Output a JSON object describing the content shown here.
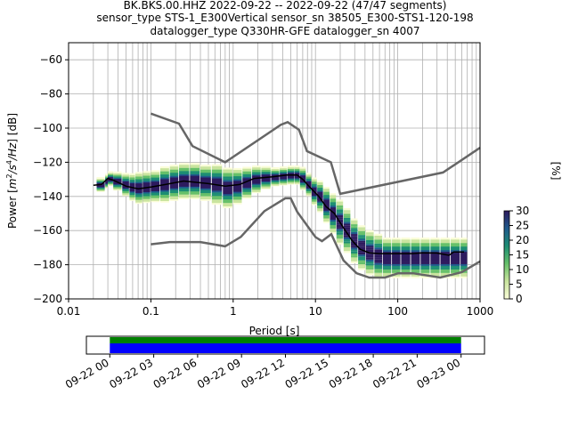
{
  "title_lines": [
    "BK.BKS.00.HHZ   2022-09-22 -- 2022-09-22  (47/47 segments)",
    "sensor_type STS-1_E300Vertical sensor_sn 38505_E300-STS1-120-198",
    "datalogger_type Q330HR-GFE datalogger_sn 4007"
  ],
  "chart_data": [
    {
      "type": "heatmap",
      "xlabel": "Period [s]",
      "ylabel_parts": {
        "a": "Power [",
        "b": "m",
        "c": "2",
        "d": "/s",
        "e": "4",
        "f": "/Hz",
        "g": "] [dB]"
      },
      "xscale": "log",
      "xlim": [
        0.01,
        1000
      ],
      "ylim": [
        -200,
        -50
      ],
      "xticks": [
        {
          "v": 0.01,
          "label": "0.01"
        },
        {
          "v": 0.1,
          "label": "0.1"
        },
        {
          "v": 1,
          "label": "1"
        },
        {
          "v": 10,
          "label": "10"
        },
        {
          "v": 100,
          "label": "100"
        },
        {
          "v": 1000,
          "label": "1000"
        }
      ],
      "yticks": [
        {
          "v": -60,
          "label": "−60"
        },
        {
          "v": -80,
          "label": "−80"
        },
        {
          "v": -100,
          "label": "−100"
        },
        {
          "v": -120,
          "label": "−120"
        },
        {
          "v": -140,
          "label": "−140"
        },
        {
          "v": -160,
          "label": "−160"
        },
        {
          "v": -180,
          "label": "−180"
        },
        {
          "v": -200,
          "label": "−200"
        }
      ],
      "grid": true,
      "nhnm": [
        [
          0.1,
          -168
        ],
        [
          0.17,
          -166.7
        ],
        [
          0.4,
          -166.7
        ],
        [
          0.8,
          -169.2
        ],
        [
          1.24,
          -163.7
        ],
        [
          2.4,
          -148.6
        ],
        [
          4.3,
          -141.1
        ],
        [
          5,
          -141.1
        ],
        [
          6,
          -149
        ],
        [
          10,
          -163.8
        ],
        [
          12,
          -166.2
        ],
        [
          15.6,
          -162.1
        ],
        [
          21.9,
          -177.5
        ],
        [
          31.6,
          -185
        ],
        [
          45,
          -187.5
        ],
        [
          70,
          -187.5
        ],
        [
          101,
          -185
        ],
        [
          154,
          -185
        ],
        [
          328,
          -187.5
        ],
        [
          600,
          -184.4
        ],
        [
          1000,
          -178
        ]
      ],
      "nlnm": [
        [
          0.1,
          -91.5
        ],
        [
          0.22,
          -97.4
        ],
        [
          0.32,
          -110.5
        ],
        [
          0.8,
          -120
        ],
        [
          3.8,
          -98
        ],
        [
          4.6,
          -96.5
        ],
        [
          6.3,
          -101
        ],
        [
          7.9,
          -113.5
        ],
        [
          15.4,
          -120
        ],
        [
          20,
          -138.5
        ],
        [
          354.8,
          -126
        ],
        [
          1000,
          -111.5
        ]
      ],
      "median": [
        [
          0.02,
          -133.5
        ],
        [
          0.025,
          -133
        ],
        [
          0.03,
          -129.5
        ],
        [
          0.035,
          -130.5
        ],
        [
          0.05,
          -134
        ],
        [
          0.07,
          -135.5
        ],
        [
          0.1,
          -134.5
        ],
        [
          0.15,
          -133
        ],
        [
          0.25,
          -131
        ],
        [
          0.5,
          -132.5
        ],
        [
          0.8,
          -134
        ],
        [
          1.2,
          -133
        ],
        [
          1.8,
          -129.5
        ],
        [
          3,
          -128.5
        ],
        [
          4.5,
          -127.5
        ],
        [
          6,
          -127.5
        ],
        [
          7,
          -130
        ],
        [
          8.5,
          -134.5
        ],
        [
          11,
          -140
        ],
        [
          13.5,
          -146
        ],
        [
          17,
          -150
        ],
        [
          22,
          -158.5
        ],
        [
          28,
          -166
        ],
        [
          35,
          -171
        ],
        [
          45,
          -173
        ],
        [
          60,
          -173.5
        ],
        [
          100,
          -173.5
        ],
        [
          150,
          -173.5
        ],
        [
          200,
          -173
        ],
        [
          300,
          -173.2
        ],
        [
          420,
          -174.5
        ],
        [
          480,
          -172.5
        ],
        [
          640,
          -172.5
        ]
      ],
      "density_grid": [
        {
          "x": 0.022,
          "c": -133,
          "s": 3
        },
        {
          "x": 0.028,
          "c": -131,
          "s": 3
        },
        {
          "x": 0.03,
          "c": -129.5,
          "s": 3
        },
        {
          "x": 0.035,
          "c": -131,
          "s": 4
        },
        {
          "x": 0.045,
          "c": -133,
          "s": 5
        },
        {
          "x": 0.055,
          "c": -134.5,
          "s": 6
        },
        {
          "x": 0.065,
          "c": -135,
          "s": 7
        },
        {
          "x": 0.08,
          "c": -134.5,
          "s": 7
        },
        {
          "x": 0.1,
          "c": -134,
          "s": 7
        },
        {
          "x": 0.13,
          "c": -133,
          "s": 8
        },
        {
          "x": 0.17,
          "c": -132,
          "s": 8
        },
        {
          "x": 0.22,
          "c": -131,
          "s": 8
        },
        {
          "x": 0.3,
          "c": -131,
          "s": 8
        },
        {
          "x": 0.4,
          "c": -132,
          "s": 8
        },
        {
          "x": 0.55,
          "c": -133,
          "s": 9
        },
        {
          "x": 0.75,
          "c": -135,
          "s": 9
        },
        {
          "x": 1.0,
          "c": -134,
          "s": 8
        },
        {
          "x": 1.3,
          "c": -132,
          "s": 7
        },
        {
          "x": 1.7,
          "c": -130,
          "s": 6
        },
        {
          "x": 2.2,
          "c": -129,
          "s": 5
        },
        {
          "x": 2.9,
          "c": -128.5,
          "s": 4
        },
        {
          "x": 3.7,
          "c": -128,
          "s": 4
        },
        {
          "x": 4.6,
          "c": -127.5,
          "s": 4
        },
        {
          "x": 5.6,
          "c": -127.5,
          "s": 4
        },
        {
          "x": 6.5,
          "c": -129.5,
          "s": 5
        },
        {
          "x": 7.7,
          "c": -133,
          "s": 5
        },
        {
          "x": 9,
          "c": -137,
          "s": 6
        },
        {
          "x": 10.5,
          "c": -140,
          "s": 7
        },
        {
          "x": 12.5,
          "c": -145,
          "s": 8
        },
        {
          "x": 15,
          "c": -150,
          "s": 9
        },
        {
          "x": 18,
          "c": -155,
          "s": 10
        },
        {
          "x": 22,
          "c": -160,
          "s": 10
        },
        {
          "x": 27,
          "c": -166,
          "s": 10
        },
        {
          "x": 33,
          "c": -170,
          "s": 10
        },
        {
          "x": 41,
          "c": -173,
          "s": 10
        },
        {
          "x": 52,
          "c": -175,
          "s": 10
        },
        {
          "x": 66,
          "c": -176,
          "s": 9
        },
        {
          "x": 85,
          "c": -176,
          "s": 9
        },
        {
          "x": 110,
          "c": -176,
          "s": 9
        },
        {
          "x": 145,
          "c": -176,
          "s": 9
        },
        {
          "x": 190,
          "c": -176,
          "s": 9
        },
        {
          "x": 250,
          "c": -176,
          "s": 9
        },
        {
          "x": 330,
          "c": -176,
          "s": 9
        },
        {
          "x": 440,
          "c": -176,
          "s": 9
        },
        {
          "x": 580,
          "c": -176,
          "s": 9
        }
      ],
      "colorbar": {
        "label": "[%]",
        "min": 0,
        "max": 30,
        "ticks": [
          {
            "v": 0,
            "label": "0"
          },
          {
            "v": 5,
            "label": "5"
          },
          {
            "v": 10,
            "label": "10"
          },
          {
            "v": 15,
            "label": "15"
          },
          {
            "v": 20,
            "label": "20"
          },
          {
            "v": 25,
            "label": "25"
          },
          {
            "v": 30,
            "label": "30"
          }
        ],
        "colors": [
          "#fbfdd9",
          "#c9e49e",
          "#66c06a",
          "#1d8e73",
          "#1e5a8c",
          "#2d1a5e"
        ]
      },
      "nlnm_color": "#666666",
      "median_color": "#000000",
      "grid_color": "#b0b0b0"
    },
    {
      "type": "bar",
      "xlabel": "",
      "time_axis": {
        "ticks": [
          "09-22 00",
          "09-22 03",
          "09-22 06",
          "09-22 09",
          "09-22 12",
          "09-22 15",
          "09-22 18",
          "09-22 21",
          "09-23 00"
        ],
        "range_hours": [
          -1.6,
          25.6
        ]
      },
      "series": [
        {
          "color": "#008000",
          "start_hour": 0,
          "end_hour": 24
        },
        {
          "color": "#0000ff",
          "start_hour": 0,
          "end_hour": 24
        }
      ]
    }
  ]
}
